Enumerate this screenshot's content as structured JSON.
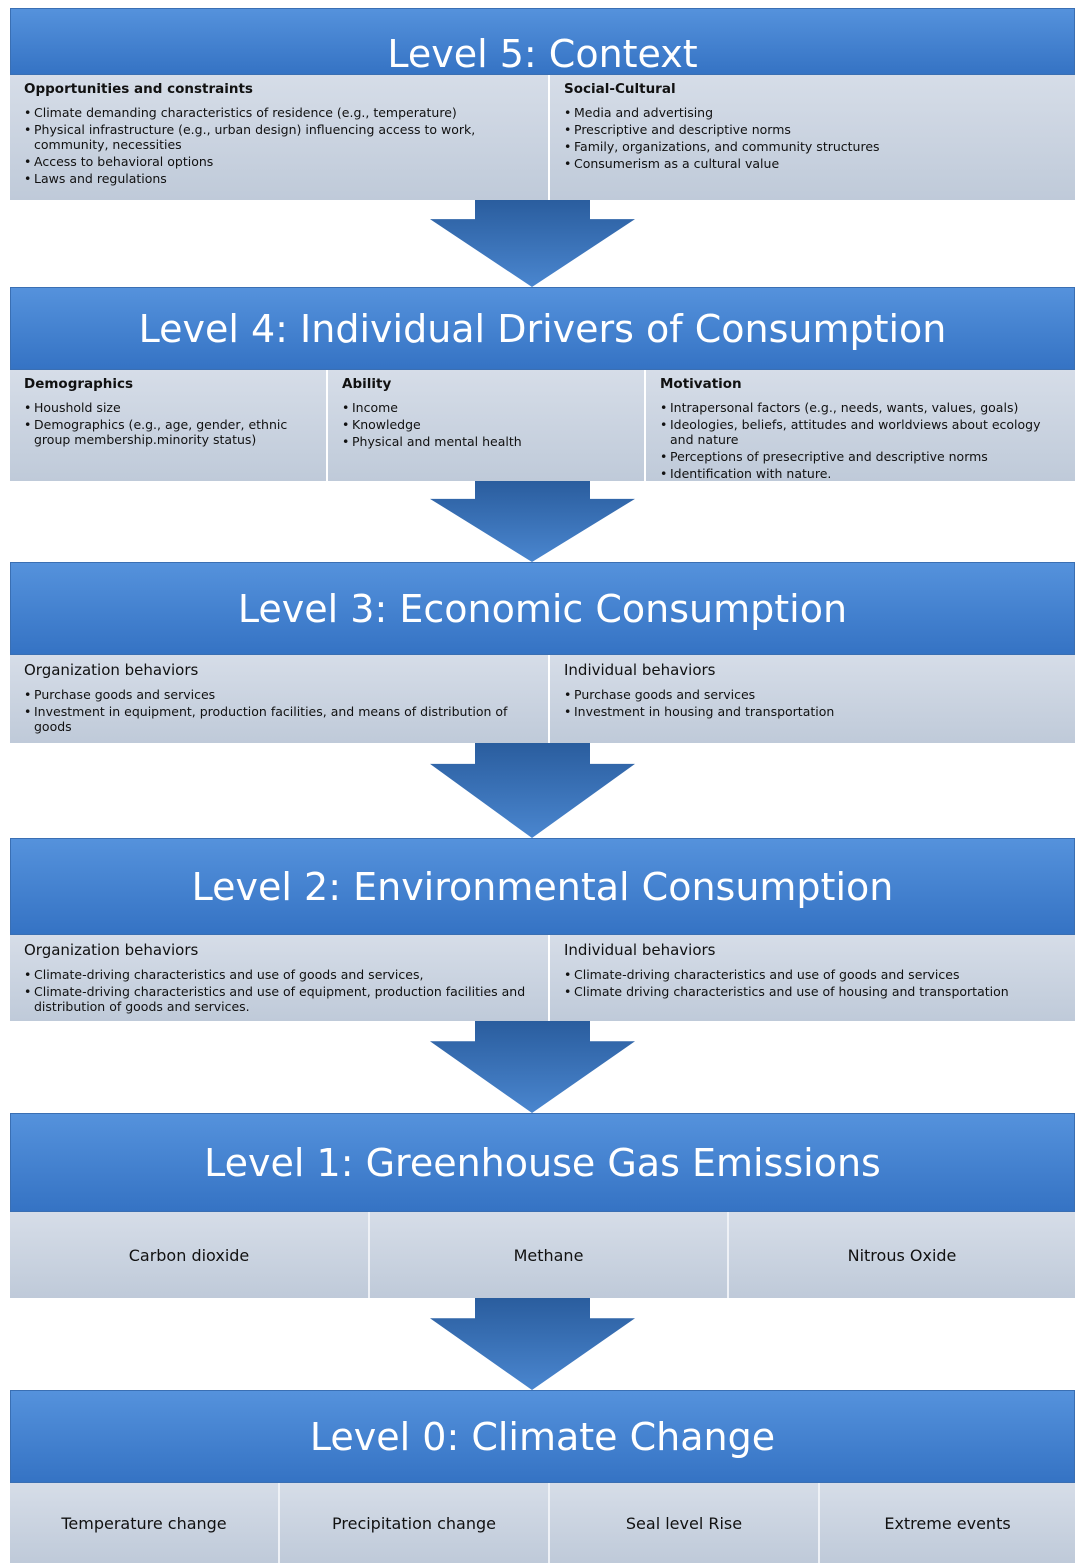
{
  "levels": [
    {
      "title": "Level 5: Context",
      "columns": [
        {
          "heading": "Opportunities and constraints",
          "items": [
            "Climate demanding characteristics of residence (e.g., temperature)",
            "Physical infrastructure (e.g., urban design) influencing access to work, community, necessities",
            "Access to behavioral options",
            "Laws and regulations"
          ]
        },
        {
          "heading": "Social-Cultural",
          "items": [
            "Media and advertising",
            "Prescriptive and descriptive norms",
            "Family, organizations, and community structures",
            "Consumerism as a cultural value"
          ]
        }
      ]
    },
    {
      "title": "Level 4:  Individual Drivers of Consumption",
      "columns": [
        {
          "heading": "Demographics",
          "items": [
            "Houshold size",
            "Demographics (e.g., age, gender, ethnic group membership.minority status)"
          ]
        },
        {
          "heading": "Ability",
          "items": [
            "Income",
            "Knowledge",
            "Physical and mental health"
          ]
        },
        {
          "heading": "Motivation",
          "items": [
            "Intrapersonal factors (e.g., needs, wants, values, goals)",
            "Ideologies, beliefs, attitudes and worldviews about ecology and nature",
            "Perceptions of presecriptive and descriptive norms",
            "Identification with nature."
          ]
        }
      ]
    },
    {
      "title": "Level 3:  Economic Consumption",
      "columns": [
        {
          "heading": "Organization behaviors",
          "items": [
            "Purchase goods and services",
            "Investment in equipment, production facilities, and means of distribution of goods"
          ]
        },
        {
          "heading": "Individual  behaviors",
          "items": [
            "Purchase goods and services",
            "Investment in housing and transportation"
          ]
        }
      ]
    },
    {
      "title": "Level 2:  Environmental Consumption",
      "columns": [
        {
          "heading": "Organization behaviors",
          "items": [
            "Climate-driving characteristics and use of goods and services,",
            "Climate-driving characteristics and use of equipment, production facilities and distribution of goods and services."
          ]
        },
        {
          "heading": "Individual behaviors",
          "items": [
            "Climate-driving characteristics and use of goods and services",
            "Climate driving characteristics and use of housing and transportation"
          ]
        }
      ]
    },
    {
      "title": "Level 1:  Greenhouse Gas Emissions",
      "cells": [
        "Carbon dioxide",
        "Methane",
        "Nitrous Oxide"
      ]
    },
    {
      "title": "Level 0:  Climate Change",
      "cells": [
        "Temperature change",
        "Precipitation change",
        "Seal level Rise",
        "Extreme events"
      ]
    }
  ]
}
